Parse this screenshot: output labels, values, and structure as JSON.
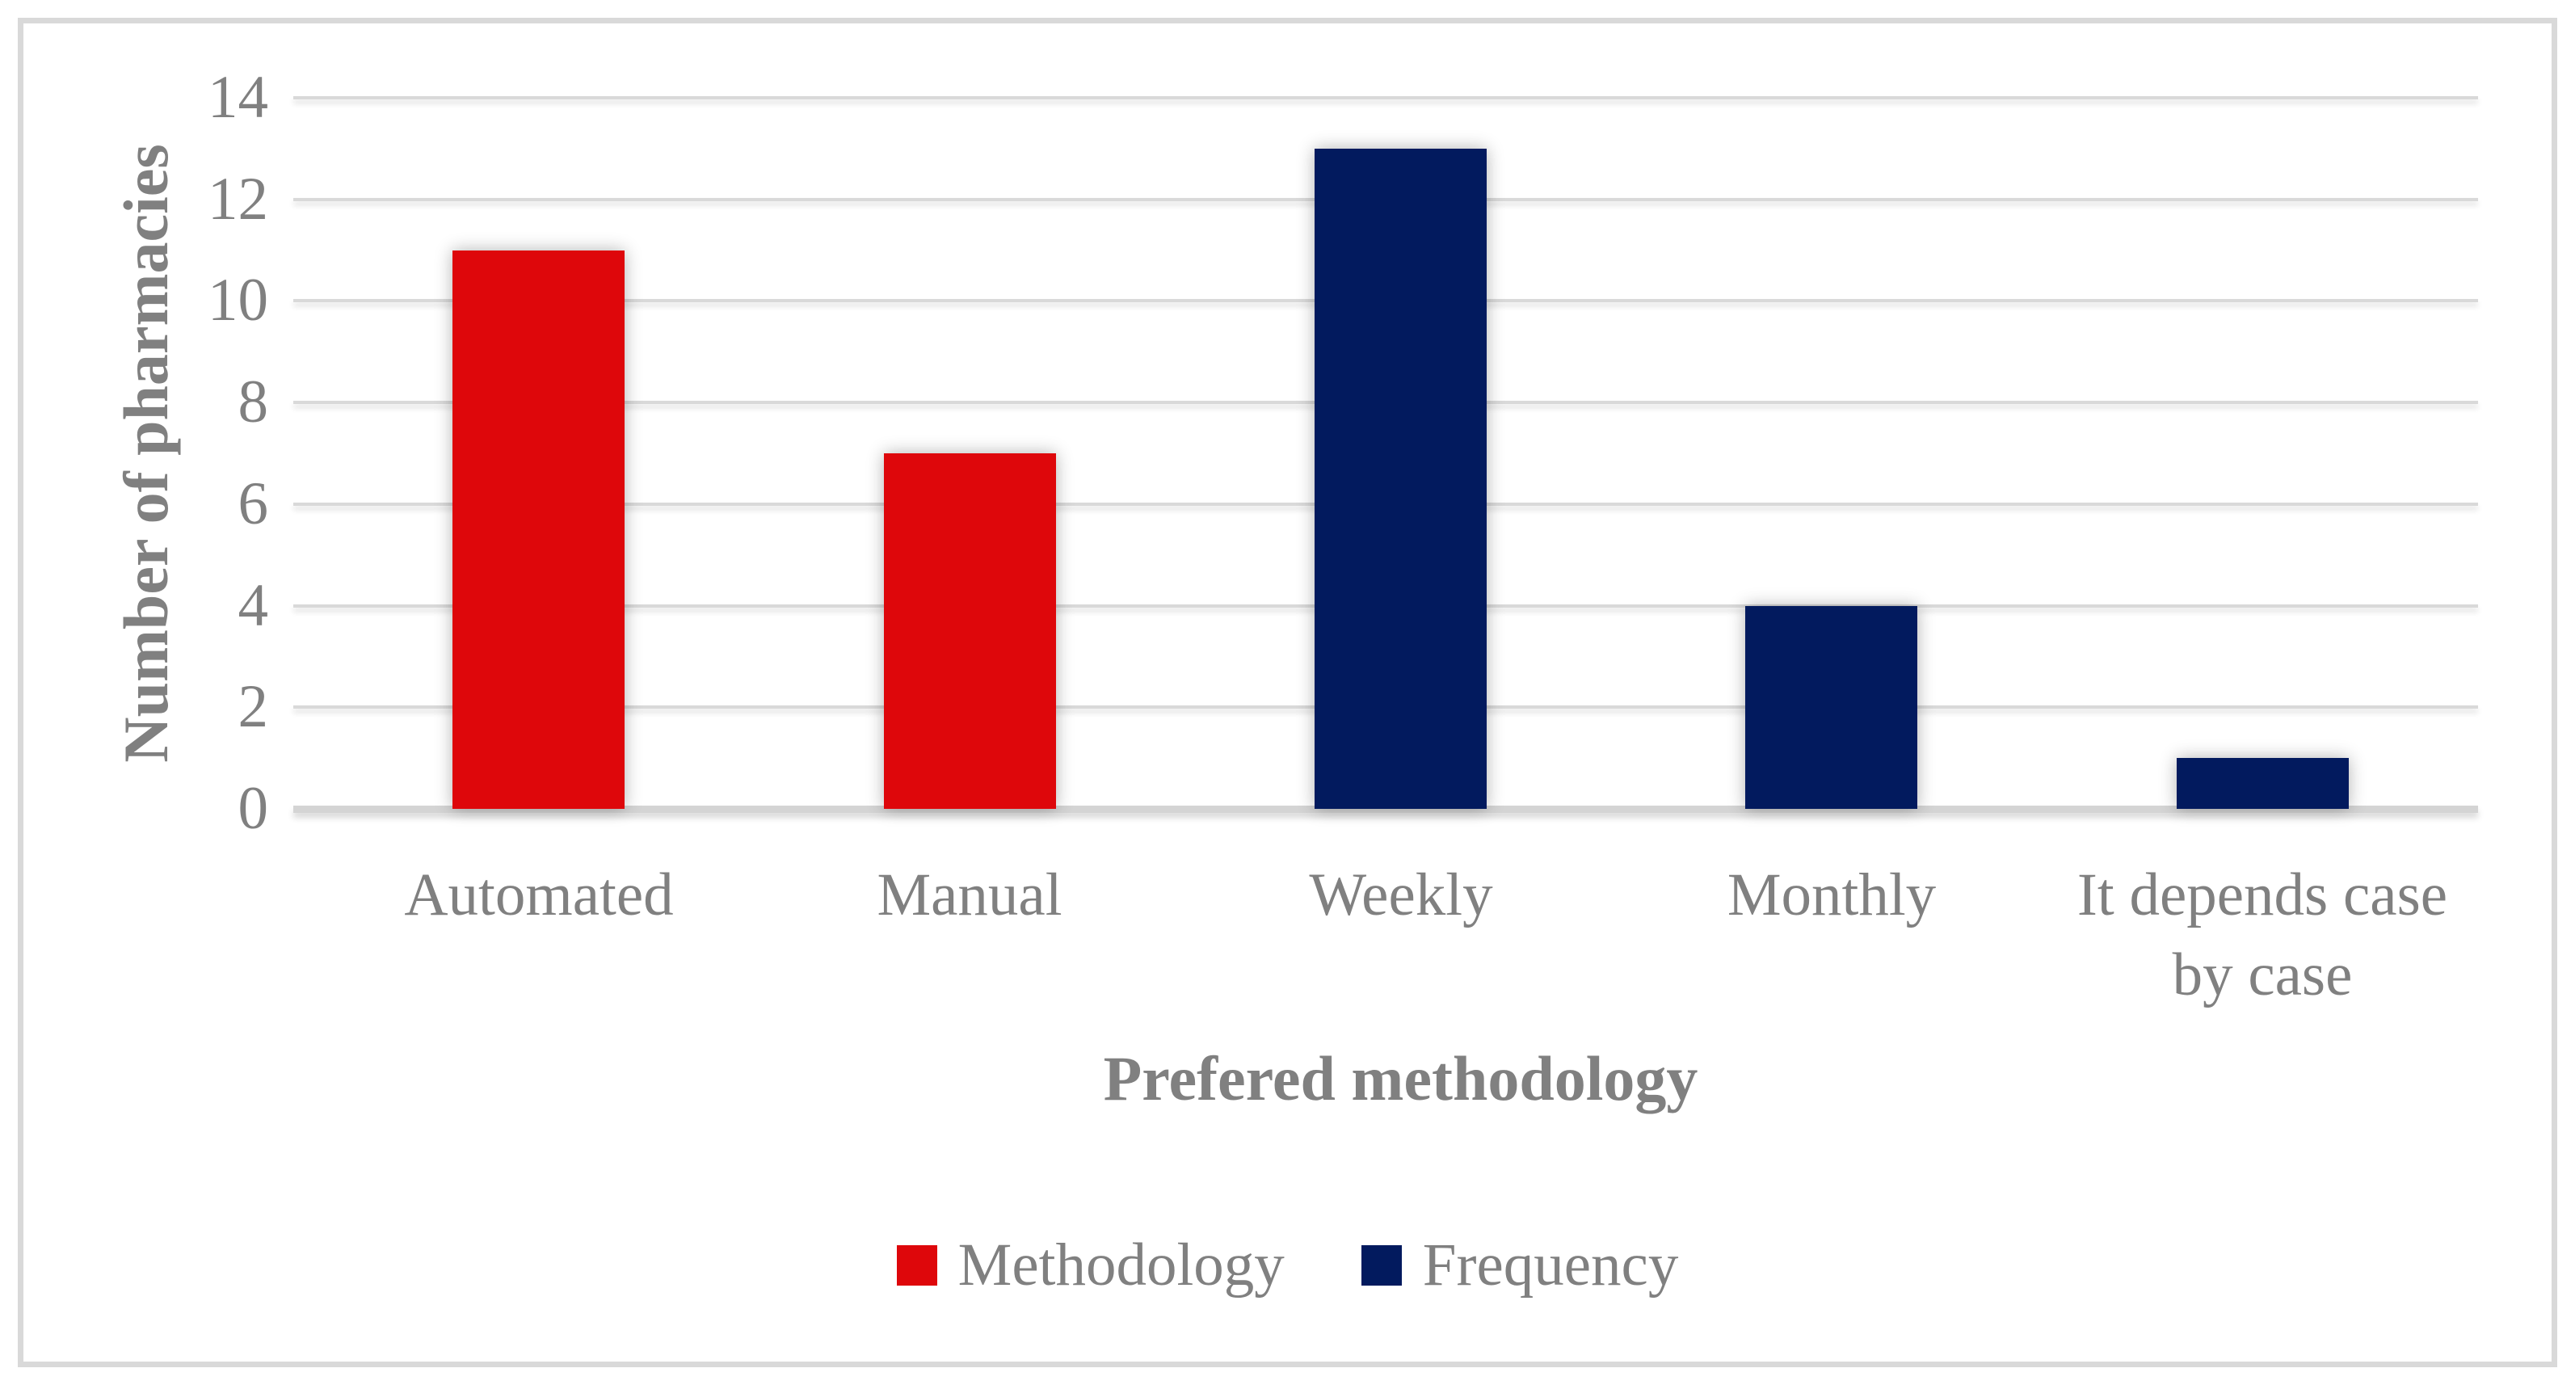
{
  "figure": {
    "background_color": "#ffffff",
    "frame_color": "#d9d9d9"
  },
  "chart_data": {
    "type": "bar",
    "title": "",
    "xlabel": "Prefered methodology",
    "ylabel": "Number of pharmacies",
    "ylim": [
      0,
      14
    ],
    "yticks": [
      0,
      2,
      4,
      6,
      8,
      10,
      12,
      14
    ],
    "grid": true,
    "legend_position": "bottom",
    "categories": [
      "Automated",
      "Manual",
      "Weekly",
      "Monthly",
      "It depends case by case"
    ],
    "bars": [
      {
        "category": "Automated",
        "value": 11,
        "series": "Methodology"
      },
      {
        "category": "Manual",
        "value": 7,
        "series": "Methodology"
      },
      {
        "category": "Weekly",
        "value": 13,
        "series": "Frequency"
      },
      {
        "category": "Monthly",
        "value": 4,
        "series": "Frequency"
      },
      {
        "category": "It depends case by case",
        "value": 1,
        "series": "Frequency"
      }
    ],
    "series": [
      {
        "name": "Methodology",
        "color": "#de070b",
        "values": [
          11,
          7,
          null,
          null,
          null
        ]
      },
      {
        "name": "Frequency",
        "color": "#021a5e",
        "values": [
          null,
          null,
          13,
          4,
          1
        ]
      }
    ],
    "legend": [
      {
        "label": "Methodology",
        "color": "#de070b"
      },
      {
        "label": "Frequency",
        "color": "#021a5e"
      }
    ],
    "colors": {
      "gridline": "#d9d9d9",
      "axis_line": "#d4d4d4",
      "text": "#808080"
    }
  }
}
